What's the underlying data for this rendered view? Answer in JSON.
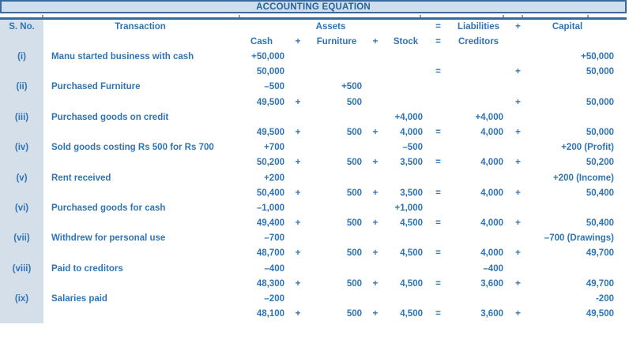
{
  "title": "ACCOUNTING EQUATION",
  "header": {
    "sno": "S. No.",
    "transaction": "Transaction",
    "assets": "Assets",
    "equals": "=",
    "liabilities": "Liabilities",
    "plus": "+",
    "capital": "Capital",
    "cash": "Cash",
    "furniture": "Furniture",
    "stock": "Stock",
    "creditors": "Creditors"
  },
  "colors": {
    "text_blue": "#2e74b5",
    "border_blue": "#3a699b",
    "title_fill": "#cfdeed",
    "serial_column_fill": "#d5dfea"
  },
  "rows": [
    {
      "sno": "(i)",
      "transaction": "Manu started business with cash",
      "delta": [
        "+50,000",
        "",
        "",
        "",
        "",
        "",
        "",
        "",
        "+50,000"
      ],
      "total": [
        "50,000",
        "",
        "",
        "",
        "",
        "=",
        "",
        "+",
        "50,000"
      ]
    },
    {
      "sno": "(ii)",
      "transaction": "Purchased Furniture",
      "delta": [
        "–500",
        "",
        "+500",
        "",
        "",
        "",
        "",
        "",
        ""
      ],
      "total": [
        "49,500",
        "+",
        "500",
        "",
        "",
        "",
        "",
        "+",
        "50,000"
      ]
    },
    {
      "sno": "(iii)",
      "transaction": "Purchased goods on credit",
      "delta": [
        "",
        "",
        "",
        "",
        "+4,000",
        "",
        "+4,000",
        "",
        ""
      ],
      "total": [
        "49,500",
        "+",
        "500",
        "+",
        "4,000",
        "=",
        "4,000",
        "+",
        "50,000"
      ]
    },
    {
      "sno": "(iv)",
      "transaction": "Sold goods costing Rs 500 for Rs 700",
      "delta": [
        "+700",
        "",
        "",
        "",
        "–500",
        "",
        "",
        "",
        "+200 (Profit)"
      ],
      "total": [
        "50,200",
        "+",
        "500",
        "+",
        "3,500",
        "=",
        "4,000",
        "+",
        "50,200"
      ]
    },
    {
      "sno": "(v)",
      "transaction": "Rent received",
      "delta": [
        "+200",
        "",
        "",
        "",
        "",
        "",
        "",
        "",
        "+200 (Income)"
      ],
      "total": [
        "50,400",
        "+",
        "500",
        "+",
        "3,500",
        "=",
        "4,000",
        "+",
        "50,400"
      ]
    },
    {
      "sno": "(vi)",
      "transaction": "Purchased goods for cash",
      "delta": [
        "–1,000",
        "",
        "",
        "",
        "+1,000",
        "",
        "",
        "",
        ""
      ],
      "total": [
        "49,400",
        "+",
        "500",
        "+",
        "4,500",
        "=",
        "4,000",
        "+",
        "50,400"
      ]
    },
    {
      "sno": "(vii)",
      "transaction": "Withdrew for personal use",
      "delta": [
        "–700",
        "",
        "",
        "",
        "",
        "",
        "",
        "",
        "–700 (Drawings)"
      ],
      "total": [
        "48,700",
        "+",
        "500",
        "+",
        "4,500",
        "=",
        "4,000",
        "+",
        "49,700"
      ]
    },
    {
      "sno": "(viii)",
      "transaction": "Paid to creditors",
      "delta": [
        "–400",
        "",
        "",
        "",
        "",
        "",
        "–400",
        "",
        ""
      ],
      "total": [
        "48,300",
        "+",
        "500",
        "+",
        "4,500",
        "=",
        "3,600",
        "+",
        "49,700"
      ]
    },
    {
      "sno": "(ix)",
      "transaction": "Salaries paid",
      "delta": [
        "–200",
        "",
        "",
        "",
        "",
        "",
        "",
        "",
        "-200"
      ],
      "total": [
        "48,100",
        "+",
        "500",
        "+",
        "4,500",
        "=",
        "3,600",
        "+",
        "49,500"
      ]
    }
  ]
}
